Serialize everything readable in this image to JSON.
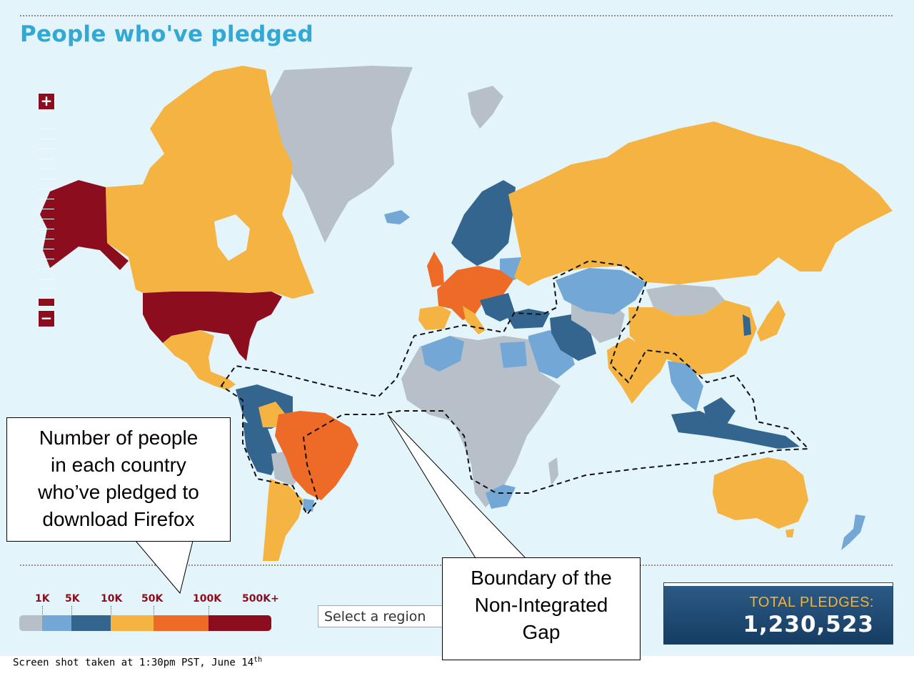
{
  "title": "People who've pledged",
  "zoom": {
    "in_label": "+",
    "out_label": "−"
  },
  "legend": {
    "labels": [
      "1K",
      "5K",
      "10K",
      "50K",
      "100K",
      "500K+"
    ],
    "colors": [
      "#b7c0c8",
      "#72a7d6",
      "#33658f",
      "#f5b342",
      "#ee6a27",
      "#8c0e1e"
    ]
  },
  "region_select": {
    "value": "Select a region"
  },
  "total": {
    "label": "TOTAL PLEDGES:",
    "value": "1,230,523"
  },
  "callouts": {
    "left": [
      "Number of people",
      "in each country",
      "who’ve pledged to",
      "download Firefox"
    ],
    "right": [
      "Boundary of the",
      "Non-Integrated",
      "Gap"
    ]
  },
  "footer": {
    "text": "Screen shot taken at 1:30pm PST, June 14",
    "suffix": "th"
  },
  "map_colors": {
    "ocean": "#e3f4fb",
    "tier_500k": "#8c0e1e",
    "tier_100k": "#ee6a27",
    "tier_50k": "#f5b342",
    "tier_10k": "#33658f",
    "tier_5k": "#72a7d6",
    "tier_1k": "#b7c0c8"
  },
  "map_regions": [
    {
      "name": "alaska",
      "tier": "tier_500k"
    },
    {
      "name": "usa",
      "tier": "tier_500k"
    },
    {
      "name": "canada",
      "tier": "tier_50k"
    },
    {
      "name": "greenland",
      "tier": "tier_1k"
    },
    {
      "name": "mexico",
      "tier": "tier_50k"
    },
    {
      "name": "brazil",
      "tier": "tier_100k"
    },
    {
      "name": "russia",
      "tier": "tier_50k"
    },
    {
      "name": "china",
      "tier": "tier_50k"
    },
    {
      "name": "india",
      "tier": "tier_50k"
    },
    {
      "name": "australia",
      "tier": "tier_50k"
    },
    {
      "name": "africa",
      "tier": "tier_1k"
    },
    {
      "name": "scandinavia",
      "tier": "tier_10k"
    },
    {
      "name": "western-europe",
      "tier": "tier_100k"
    },
    {
      "name": "kazakhstan",
      "tier": "tier_5k"
    },
    {
      "name": "iran",
      "tier": "tier_10k"
    }
  ]
}
